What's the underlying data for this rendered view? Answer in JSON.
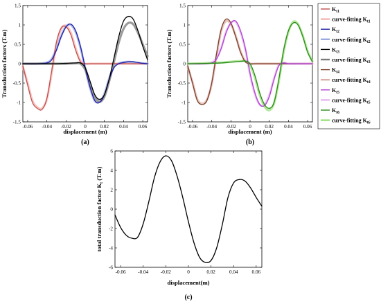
{
  "chart_data": [
    {
      "type": "line",
      "panel_label": "(a)",
      "xlabel": "displacement (m)",
      "ylabel": "Transduction factors (T.m)",
      "xlim": [
        -0.065,
        0.065
      ],
      "ylim": [
        -1.5,
        1.5
      ],
      "xticks": [
        "-0.06",
        "-0.04",
        "-0.02",
        "0",
        "0.02",
        "0.04",
        "0.06"
      ],
      "yticks": [
        "1.5",
        "1",
        "0.5",
        "0",
        "-0.5",
        "-1",
        "-1.5"
      ],
      "series": [
        {
          "name": "Kt1",
          "kind": "measured",
          "color": "#c0504d",
          "x": [
            -0.065,
            -0.06,
            -0.055,
            -0.05,
            -0.045,
            -0.04,
            -0.035,
            -0.03,
            -0.025,
            -0.02,
            -0.015,
            -0.01,
            -0.005,
            0,
            0.005,
            0.01,
            0.015,
            0.02,
            0.025,
            0.03,
            0.035,
            0.04,
            0.045,
            0.05,
            0.055,
            0.06,
            0.065
          ],
          "y": [
            -0.05,
            -0.55,
            -1.0,
            -1.15,
            -1.18,
            -0.9,
            -0.2,
            0.55,
            0.92,
            0.95,
            0.75,
            0.35,
            0.05,
            0.0,
            0,
            0,
            0,
            0,
            0,
            0,
            0,
            0,
            0,
            0,
            0,
            0,
            0
          ]
        },
        {
          "name": "curve-fitting Kt1",
          "kind": "fit",
          "color": "#f4b6b2",
          "x": [
            -0.065,
            -0.06,
            -0.055,
            -0.05,
            -0.045,
            -0.04,
            -0.035,
            -0.03,
            -0.025,
            -0.02,
            -0.015,
            -0.01,
            -0.005,
            0,
            0.005,
            0.01,
            0.015,
            0.02,
            0.025,
            0.03,
            0.035,
            0.04,
            0.045,
            0.05,
            0.055,
            0.06,
            0.065
          ],
          "y": [
            -0.08,
            -0.5,
            -0.95,
            -1.12,
            -1.15,
            -0.92,
            -0.25,
            0.5,
            0.9,
            0.98,
            0.8,
            0.4,
            0.08,
            0.0,
            0,
            0,
            0,
            0,
            0,
            0,
            0,
            0,
            0,
            0,
            0,
            0,
            0
          ]
        },
        {
          "name": "Kt2",
          "kind": "measured",
          "color": "#1f1fa8",
          "x": [
            -0.065,
            -0.05,
            -0.04,
            -0.035,
            -0.03,
            -0.025,
            -0.02,
            -0.015,
            -0.01,
            -0.005,
            0,
            0.005,
            0.01,
            0.015,
            0.02,
            0.025,
            0.03,
            0.035,
            0.04,
            0.045,
            0.05,
            0.055,
            0.06,
            0.065
          ],
          "y": [
            0,
            0,
            0.02,
            0.1,
            0.35,
            0.7,
            0.95,
            1.02,
            0.85,
            0.45,
            -0.1,
            -0.6,
            -0.95,
            -1.0,
            -0.8,
            -0.4,
            -0.1,
            0,
            0.03,
            0.05,
            0.05,
            0.03,
            0.01,
            0
          ]
        },
        {
          "name": "curve-fitting Kt2",
          "kind": "fit",
          "color": "#9aa8e0",
          "x": [
            -0.065,
            -0.05,
            -0.04,
            -0.035,
            -0.03,
            -0.025,
            -0.02,
            -0.015,
            -0.01,
            -0.005,
            0,
            0.005,
            0.01,
            0.015,
            0.02,
            0.025,
            0.03,
            0.035,
            0.04,
            0.045,
            0.05,
            0.055,
            0.06,
            0.065
          ],
          "y": [
            0,
            0,
            0.03,
            0.12,
            0.38,
            0.72,
            0.96,
            1.0,
            0.82,
            0.42,
            -0.12,
            -0.62,
            -0.96,
            -0.98,
            -0.78,
            -0.38,
            -0.08,
            0.01,
            0.04,
            0.05,
            0.04,
            0.02,
            0.01,
            0
          ]
        },
        {
          "name": "Kt3",
          "kind": "measured",
          "color": "#000000",
          "x": [
            -0.065,
            -0.04,
            -0.03,
            -0.02,
            -0.01,
            -0.005,
            0,
            0.005,
            0.01,
            0.015,
            0.02,
            0.025,
            0.03,
            0.035,
            0.04,
            0.045,
            0.05,
            0.055,
            0.06,
            0.065
          ],
          "y": [
            0,
            0,
            0,
            0.01,
            0.02,
            0.02,
            -0.1,
            -0.45,
            -0.8,
            -0.92,
            -0.8,
            -0.4,
            0.15,
            0.7,
            1.1,
            1.22,
            1.15,
            0.85,
            0.45,
            0.1
          ]
        },
        {
          "name": "curve-fitting Kt3",
          "kind": "fit",
          "color": "#7a7a7a",
          "x": [
            -0.065,
            -0.04,
            -0.03,
            -0.02,
            -0.01,
            -0.005,
            0,
            0.005,
            0.01,
            0.015,
            0.02,
            0.025,
            0.03,
            0.035,
            0.04,
            0.045,
            0.05,
            0.055,
            0.06,
            0.065
          ],
          "y": [
            0,
            0,
            0,
            0,
            0.01,
            0.0,
            -0.15,
            -0.5,
            -0.85,
            -0.98,
            -0.85,
            -0.45,
            0.05,
            0.55,
            0.9,
            1.05,
            1.02,
            0.8,
            0.5,
            0.2
          ]
        }
      ]
    },
    {
      "type": "line",
      "panel_label": "(b)",
      "xlabel": "displacement (m)",
      "ylabel": "Transduction factors (T.m)",
      "xlim": [
        -0.065,
        0.065
      ],
      "ylim": [
        -1.5,
        1.5
      ],
      "xticks": [
        "-0.06",
        "-0.04",
        "-0.02",
        "0",
        "0.02",
        "0.04",
        "0.06"
      ],
      "yticks": [
        "1.5",
        "1",
        "0.5",
        "0",
        "-0.5",
        "-1",
        "-1.5"
      ],
      "series": [
        {
          "name": "Kt4",
          "kind": "measured",
          "color": "#7b3f2a",
          "x": [
            -0.065,
            -0.06,
            -0.055,
            -0.05,
            -0.045,
            -0.04,
            -0.035,
            -0.03,
            -0.025,
            -0.02,
            -0.015,
            -0.01,
            -0.005,
            0,
            0.005,
            0.01,
            0.02,
            0.03,
            0.04,
            0.05,
            0.065
          ],
          "y": [
            -0.05,
            -0.5,
            -0.95,
            -1.05,
            -0.95,
            -0.5,
            0.25,
            0.9,
            1.15,
            1.05,
            0.7,
            0.3,
            0.05,
            0,
            0,
            0,
            0,
            0,
            0,
            0,
            0
          ]
        },
        {
          "name": "curve-fitting Kt4",
          "kind": "fit",
          "color": "#e0b0a8",
          "x": [
            -0.065,
            -0.06,
            -0.055,
            -0.05,
            -0.045,
            -0.04,
            -0.035,
            -0.03,
            -0.025,
            -0.02,
            -0.015,
            -0.01,
            -0.005,
            0,
            0.005,
            0.01,
            0.02,
            0.03,
            0.04,
            0.05,
            0.065
          ],
          "y": [
            -0.08,
            -0.48,
            -0.92,
            -1.03,
            -0.93,
            -0.52,
            0.2,
            0.85,
            1.1,
            1.02,
            0.72,
            0.32,
            0.07,
            0,
            0,
            0,
            0,
            0,
            0,
            0,
            0
          ]
        },
        {
          "name": "Kt5",
          "kind": "measured",
          "color": "#b040d0",
          "x": [
            -0.065,
            -0.05,
            -0.04,
            -0.035,
            -0.03,
            -0.025,
            -0.02,
            -0.015,
            -0.01,
            -0.005,
            0,
            0.005,
            0.01,
            0.015,
            0.02,
            0.025,
            0.03,
            0.035,
            0.04,
            0.05,
            0.065
          ],
          "y": [
            0,
            0,
            0.02,
            0.12,
            0.4,
            0.8,
            1.05,
            1.1,
            0.85,
            0.4,
            -0.25,
            -0.75,
            -1.05,
            -1.08,
            -0.85,
            -0.4,
            -0.05,
            0.02,
            0,
            0,
            0
          ]
        },
        {
          "name": "curve-fitting Kt5",
          "kind": "fit",
          "color": "#e6b8f0",
          "x": [
            -0.065,
            -0.05,
            -0.04,
            -0.035,
            -0.03,
            -0.025,
            -0.02,
            -0.015,
            -0.01,
            -0.005,
            0,
            0.005,
            0.01,
            0.015,
            0.02,
            0.025,
            0.03,
            0.035,
            0.04,
            0.05,
            0.065
          ],
          "y": [
            0,
            0,
            0.03,
            0.15,
            0.42,
            0.82,
            1.05,
            1.08,
            0.82,
            0.38,
            -0.28,
            -0.78,
            -1.05,
            -1.05,
            -0.82,
            -0.38,
            -0.03,
            0.02,
            0,
            0,
            0
          ]
        },
        {
          "name": "Kt6",
          "kind": "measured",
          "color": "#2a8a1a",
          "x": [
            -0.065,
            -0.04,
            -0.03,
            -0.02,
            -0.01,
            -0.005,
            0,
            0.005,
            0.01,
            0.015,
            0.02,
            0.025,
            0.03,
            0.035,
            0.04,
            0.045,
            0.05,
            0.055,
            0.06,
            0.065
          ],
          "y": [
            0,
            0.01,
            0.02,
            0.04,
            0.06,
            0.07,
            0.0,
            -0.3,
            -0.75,
            -1.05,
            -1.15,
            -1.0,
            -0.4,
            0.35,
            0.85,
            1.05,
            1.0,
            0.7,
            0.3,
            0.05
          ]
        },
        {
          "name": "curve-fitting Kt6",
          "kind": "fit",
          "color": "#9ae07a",
          "x": [
            -0.065,
            -0.04,
            -0.03,
            -0.02,
            -0.01,
            -0.005,
            0,
            0.005,
            0.01,
            0.015,
            0.02,
            0.025,
            0.03,
            0.035,
            0.04,
            0.045,
            0.05,
            0.055,
            0.06,
            0.065
          ],
          "y": [
            0,
            0.02,
            0.03,
            0.05,
            0.07,
            0.06,
            -0.05,
            -0.35,
            -0.8,
            -1.1,
            -1.2,
            -1.02,
            -0.45,
            0.3,
            0.82,
            1.08,
            1.02,
            0.72,
            0.32,
            0.06
          ]
        }
      ]
    },
    {
      "type": "line",
      "panel_label": "(c)",
      "xlabel": "displacement(m)",
      "ylabel": "total transduction factor Kt (T.m)",
      "xlim": [
        -0.065,
        0.065
      ],
      "ylim": [
        -6,
        6
      ],
      "xticks": [
        "-0.06",
        "-0.04",
        "-0.02",
        "0",
        "0.02",
        "0.04",
        "0.06"
      ],
      "yticks": [
        "6",
        "4",
        "2",
        "0",
        "-2",
        "-4",
        "-6"
      ],
      "series": [
        {
          "name": "Kt",
          "color": "#000000",
          "x": [
            -0.065,
            -0.06,
            -0.055,
            -0.05,
            -0.045,
            -0.04,
            -0.035,
            -0.03,
            -0.025,
            -0.02,
            -0.015,
            -0.01,
            -0.005,
            0,
            0.005,
            0.01,
            0.015,
            0.02,
            0.025,
            0.03,
            0.035,
            0.04,
            0.045,
            0.05,
            0.055,
            0.06,
            0.065
          ],
          "y": [
            -0.6,
            -1.9,
            -2.7,
            -3.0,
            -2.9,
            -1.5,
            0.8,
            3.3,
            4.9,
            5.5,
            5.0,
            3.4,
            1.2,
            -1.3,
            -3.5,
            -5.0,
            -5.5,
            -5.3,
            -4.0,
            -1.6,
            1.2,
            2.7,
            3.05,
            2.9,
            2.2,
            1.2,
            0.3
          ]
        }
      ]
    }
  ],
  "legend": {
    "items": [
      {
        "prefix": "K",
        "sub": "t1",
        "color": "#c0504d"
      },
      {
        "prefix": "curve-fitting K",
        "sub": "t1",
        "color": "#f4b6b2"
      },
      {
        "prefix": "K",
        "sub": "t2",
        "color": "#1f1fa8"
      },
      {
        "prefix": "curve-fitting K",
        "sub": "t2",
        "color": "#9aa8e0"
      },
      {
        "prefix": "K",
        "sub": "t3",
        "color": "#000000"
      },
      {
        "prefix": "curve-fitting K",
        "sub": "t3",
        "color": "#7a7a7a"
      },
      {
        "prefix": "K",
        "sub": "t4",
        "color": "#7b3f2a"
      },
      {
        "prefix": "curve-fitting K",
        "sub": "t4",
        "color": "#e0b0a8"
      },
      {
        "prefix": "K",
        "sub": "t5",
        "color": "#b040d0"
      },
      {
        "prefix": "curve-fitting K",
        "sub": "t5",
        "color": "#e6b8f0"
      },
      {
        "prefix": "K",
        "sub": "t6",
        "color": "#2a8a1a"
      },
      {
        "prefix": "curve-fitting K",
        "sub": "t6",
        "color": "#9ae07a"
      }
    ]
  }
}
